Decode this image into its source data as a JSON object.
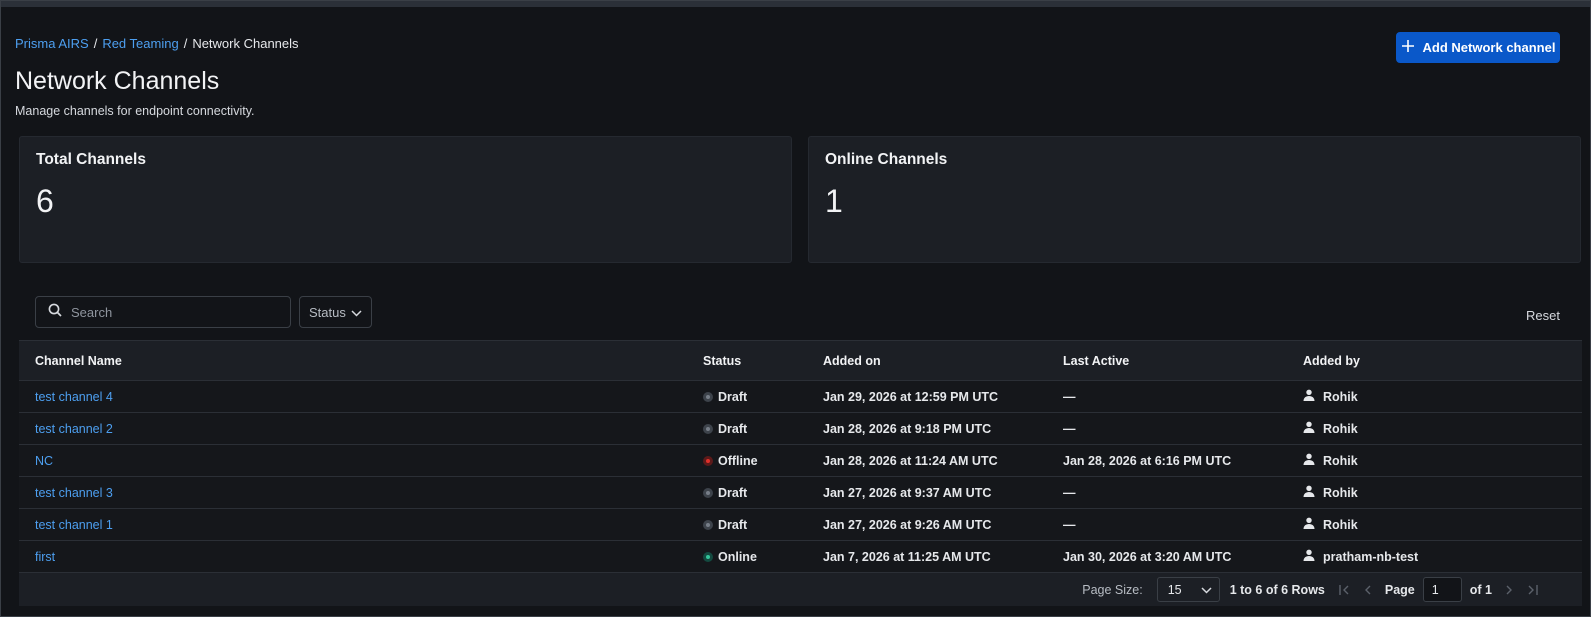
{
  "breadcrumb": {
    "items": [
      "Prisma AIRS",
      "Red Teaming"
    ],
    "separator": "/",
    "current": "Network Channels"
  },
  "page": {
    "title": "Network Channels",
    "subtitle": "Manage channels for endpoint connectivity."
  },
  "actions": {
    "add_label": "Add Network channel"
  },
  "stats": {
    "total_label": "Total Channels",
    "total_value": "6",
    "online_label": "Online Channels",
    "online_value": "1"
  },
  "filters": {
    "search_placeholder": "Search",
    "status_label": "Status",
    "reset_label": "Reset"
  },
  "table": {
    "columns": [
      "Channel Name",
      "Status",
      "Added on",
      "Last Active",
      "Added by"
    ],
    "rows": [
      {
        "name": "test channel 4",
        "status": "Draft",
        "added_on": "Jan 29, 2026 at 12:59 PM UTC",
        "last_active": "—",
        "added_by": "Rohik"
      },
      {
        "name": "test channel 2",
        "status": "Draft",
        "added_on": "Jan 28, 2026 at 9:18 PM UTC",
        "last_active": "—",
        "added_by": "Rohik"
      },
      {
        "name": "NC",
        "status": "Offline",
        "added_on": "Jan 28, 2026 at 11:24 AM UTC",
        "last_active": "Jan 28, 2026 at 6:16 PM UTC",
        "added_by": "Rohik"
      },
      {
        "name": "test channel 3",
        "status": "Draft",
        "added_on": "Jan 27, 2026 at 9:37 AM UTC",
        "last_active": "—",
        "added_by": "Rohik"
      },
      {
        "name": "test channel 1",
        "status": "Draft",
        "added_on": "Jan 27, 2026 at 9:26 AM UTC",
        "last_active": "—",
        "added_by": "Rohik"
      },
      {
        "name": "first",
        "status": "Online",
        "added_on": "Jan 7, 2026 at 11:25 AM UTC",
        "last_active": "Jan 30, 2026 at 3:20 AM UTC",
        "added_by": "pratham-nb-test"
      }
    ]
  },
  "pagination": {
    "page_size_label": "Page Size:",
    "page_size": "15",
    "rows_text": "1 to 6 of 6 Rows",
    "page_label": "Page",
    "page_value": "1",
    "of_text": "of 1"
  },
  "colors": {
    "accent": "#0a58c9",
    "link": "#4d9ff0",
    "status_draft": "#777e88",
    "status_offline": "#e0302a",
    "status_online": "#34c49a"
  }
}
